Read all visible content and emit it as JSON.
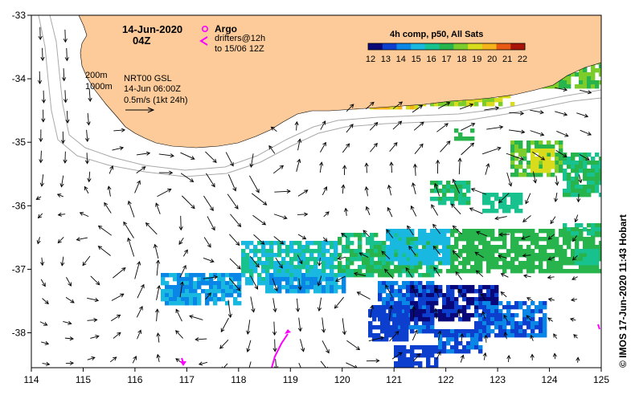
{
  "map": {
    "title_date": "14-Jun-2020",
    "title_time": "04Z",
    "argo_label": "Argo",
    "drifters_line1": "drifters@12h",
    "drifters_line2": "to 15/06 12Z",
    "colorbar_title": "4h comp, p50, All Sats",
    "colorbar_ticks": [
      "12",
      "13",
      "14",
      "15",
      "16",
      "17",
      "18",
      "19",
      "20",
      "21",
      "22"
    ],
    "contour_200": "200m",
    "contour_1000": "1000m",
    "product": "NRT00 GSL",
    "product_time": "14-Jun 06:00Z",
    "scale_label": "0.5m/s (1kt 24h)",
    "credit": "© IMOS 17-Jun-2020 11:43 Hobart",
    "x_axis": {
      "labels": [
        "114",
        "115",
        "116",
        "117",
        "118",
        "119",
        "120",
        "121",
        "122",
        "123",
        "124",
        "125"
      ],
      "min": 114,
      "max": 125
    },
    "y_axis": {
      "labels": [
        "-33",
        "-34",
        "-35",
        "-36",
        "-37",
        "-38"
      ],
      "min": -38.55,
      "max": -33
    },
    "colors": {
      "land": "#fccb99",
      "drifter": "#ff00ff",
      "contour": "#a9a9a9",
      "sst_palette": [
        "#08087a",
        "#0d3fcf",
        "#0a86e6",
        "#18b8e0",
        "#18c28f",
        "#27b44c",
        "#7ccc2c",
        "#d8dc1c",
        "#f6b41c",
        "#e85a14",
        "#a81408"
      ]
    }
  }
}
